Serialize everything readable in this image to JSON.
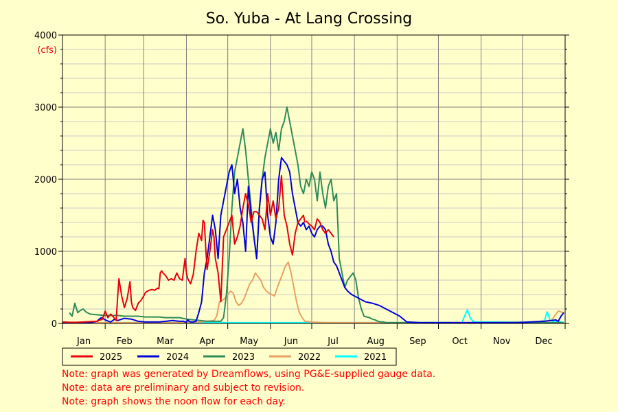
{
  "chart_data": {
    "type": "line",
    "title": "So. Yuba - At Lang Crossing",
    "ylabel": "(cfs)",
    "ylim": [
      0,
      4000
    ],
    "yticks": [
      0,
      1000,
      2000,
      3000,
      4000
    ],
    "xlim": [
      0,
      365
    ],
    "month_labels": [
      "Jan",
      "Feb",
      "Mar",
      "Apr",
      "May",
      "Jun",
      "Jul",
      "Aug",
      "Sep",
      "Oct",
      "Nov",
      "Dec"
    ],
    "grid": true,
    "legend_position": "bottom-left",
    "series": [
      {
        "name": "2025",
        "color": "#e8000b",
        "x": [
          0,
          5,
          10,
          15,
          20,
          25,
          29,
          31,
          33,
          35,
          37,
          39,
          40,
          41,
          43,
          45,
          47,
          49,
          50,
          51,
          53,
          55,
          57,
          59,
          60,
          61,
          63,
          65,
          67,
          69,
          70,
          71,
          72,
          73,
          74,
          75,
          77,
          79,
          81,
          83,
          85,
          87,
          89,
          90,
          91,
          93,
          95,
          97,
          99,
          101,
          102,
          103,
          104,
          105,
          107,
          109,
          110,
          111,
          113,
          115,
          117,
          119,
          121,
          123,
          125,
          127,
          129,
          131,
          133,
          135,
          137,
          139,
          141,
          143,
          145,
          147,
          149,
          151,
          153,
          155,
          157,
          159,
          161,
          163,
          165,
          167,
          169,
          171,
          173,
          175,
          176
        ],
        "y": [
          20,
          15,
          15,
          20,
          25,
          30,
          60,
          170,
          80,
          130,
          90,
          40,
          350,
          620,
          380,
          220,
          350,
          580,
          300,
          220,
          180,
          280,
          320,
          380,
          420,
          440,
          460,
          470,
          460,
          490,
          480,
          700,
          730,
          700,
          680,
          660,
          600,
          620,
          600,
          700,
          620,
          600,
          900,
          700,
          620,
          550,
          680,
          1000,
          1250,
          1150,
          1430,
          1400,
          1050,
          750,
          1000,
          1300,
          1200,
          900,
          700,
          300,
          1200,
          1300,
          1400,
          1500,
          1100,
          1200,
          1350,
          1600,
          1800,
          1650,
          1400,
          1550,
          1550,
          1500,
          1450,
          1300,
          1800,
          1500,
          1700,
          1450,
          1600,
          2050,
          1500,
          1350,
          1100,
          950,
          1250,
          1400,
          1450,
          1500,
          1400
        ],
        "x_tail": [
          177,
          179,
          181,
          183,
          185,
          187,
          189,
          191,
          193,
          195,
          197
        ],
        "y_tail": [
          1420,
          1380,
          1350,
          1300,
          1450,
          1400,
          1300,
          1250,
          1300,
          1250,
          1200
        ]
      },
      {
        "name": "2024",
        "color": "#0000dd",
        "x": [
          0,
          10,
          20,
          25,
          28,
          32,
          35,
          38,
          40,
          45,
          50,
          55,
          60,
          65,
          70,
          75,
          80,
          85,
          88,
          89,
          90,
          91,
          92,
          93,
          95,
          97,
          99,
          101,
          103,
          105,
          107,
          109,
          111,
          113,
          115,
          117,
          119,
          121,
          123,
          125,
          127,
          129,
          131,
          133,
          135,
          137,
          139,
          141,
          143,
          145,
          147,
          149,
          151,
          153,
          155,
          157,
          159,
          161,
          163,
          165,
          167,
          169,
          171,
          173,
          175,
          177,
          179,
          181,
          183,
          185,
          187,
          189,
          191,
          193,
          195,
          197,
          199,
          201,
          203,
          205,
          207,
          210,
          215,
          220,
          225,
          230,
          235,
          240,
          245,
          250,
          260,
          270,
          280,
          290,
          300,
          310,
          320,
          330,
          340,
          350,
          355,
          358,
          360,
          362,
          364
        ],
        "y": [
          10,
          10,
          10,
          30,
          80,
          40,
          20,
          60,
          40,
          70,
          60,
          30,
          20,
          20,
          20,
          30,
          40,
          30,
          30,
          20,
          20,
          50,
          30,
          20,
          20,
          30,
          150,
          300,
          700,
          900,
          1200,
          1500,
          1300,
          900,
          1500,
          1700,
          1900,
          2100,
          2200,
          1800,
          2000,
          1600,
          1400,
          1000,
          1900,
          1500,
          1200,
          900,
          1600,
          2000,
          2100,
          1500,
          1200,
          1100,
          1400,
          2000,
          2300,
          2250,
          2200,
          2100,
          1800,
          1600,
          1400,
          1350,
          1400,
          1300,
          1350,
          1250,
          1200,
          1300,
          1350,
          1350,
          1300,
          1100,
          1000,
          850,
          800,
          700,
          600,
          500,
          450,
          400,
          350,
          300,
          280,
          250,
          200,
          150,
          100,
          20,
          10,
          10,
          10,
          10,
          10,
          10,
          10,
          10,
          20,
          30,
          40,
          50,
          30,
          100,
          150
        ]
      },
      {
        "name": "2023",
        "color": "#2e8b57",
        "x": [
          5,
          7,
          9,
          11,
          13,
          15,
          17,
          20,
          25,
          30,
          35,
          40,
          45,
          50,
          55,
          60,
          65,
          70,
          75,
          80,
          85,
          90,
          95,
          100,
          105,
          110,
          115,
          117,
          119,
          121,
          123,
          125,
          127,
          129,
          131,
          133,
          135,
          137,
          139,
          141,
          143,
          145,
          147,
          149,
          151,
          153,
          155,
          157,
          159,
          161,
          163,
          165,
          167,
          169,
          171,
          173,
          175,
          177,
          179,
          181,
          183,
          185,
          187,
          189,
          191,
          193,
          195,
          197,
          199,
          201,
          203,
          205,
          207,
          209,
          211,
          213,
          215,
          217,
          219,
          221,
          223,
          225,
          227,
          229,
          231,
          233,
          235,
          237,
          239,
          241,
          243,
          245,
          247,
          249,
          251,
          253,
          255,
          257,
          259,
          261,
          263,
          265,
          270,
          280,
          290,
          300,
          310,
          320,
          330,
          340,
          350,
          360,
          364
        ],
        "y": [
          150,
          100,
          280,
          150,
          180,
          200,
          160,
          130,
          120,
          110,
          110,
          110,
          100,
          100,
          100,
          90,
          90,
          90,
          80,
          80,
          80,
          60,
          50,
          40,
          30,
          30,
          30,
          80,
          400,
          900,
          1600,
          2100,
          2300,
          2500,
          2700,
          2400,
          2000,
          1600,
          1200,
          900,
          1600,
          2000,
          2300,
          2500,
          2700,
          2500,
          2650,
          2400,
          2700,
          2800,
          3000,
          2800,
          2600,
          2400,
          2200,
          1900,
          1800,
          2000,
          1900,
          2100,
          2000,
          1700,
          2100,
          1800,
          1600,
          1900,
          2000,
          1700,
          1800,
          900,
          700,
          500,
          600,
          650,
          700,
          600,
          350,
          200,
          100,
          90,
          80,
          60,
          50,
          30,
          20,
          20,
          10,
          10,
          10,
          10,
          10,
          10,
          10,
          10,
          10,
          10,
          10,
          10,
          10,
          10,
          10,
          10,
          10,
          10,
          10,
          10,
          10,
          10,
          10,
          10,
          10,
          10,
          10
        ]
      },
      {
        "name": "2022",
        "color": "#e8a060",
        "x": [
          0,
          20,
          40,
          60,
          80,
          100,
          105,
          110,
          112,
          114,
          116,
          118,
          120,
          122,
          124,
          126,
          128,
          130,
          132,
          134,
          136,
          138,
          140,
          142,
          144,
          146,
          148,
          150,
          152,
          154,
          156,
          158,
          160,
          162,
          164,
          166,
          168,
          170,
          172,
          174,
          176,
          180,
          190,
          200,
          220,
          250,
          280,
          310,
          340,
          355,
          360,
          364
        ],
        "y": [
          10,
          10,
          10,
          10,
          10,
          20,
          30,
          40,
          100,
          300,
          320,
          350,
          400,
          450,
          420,
          300,
          250,
          280,
          350,
          450,
          550,
          600,
          700,
          650,
          600,
          500,
          450,
          420,
          400,
          380,
          500,
          600,
          700,
          800,
          850,
          700,
          500,
          300,
          150,
          80,
          30,
          20,
          10,
          10,
          10,
          10,
          10,
          10,
          20,
          40,
          170,
          150
        ]
      },
      {
        "name": "2021",
        "color": "#00ffff",
        "x": [
          0,
          20,
          40,
          60,
          80,
          100,
          120,
          140,
          160,
          180,
          200,
          220,
          240,
          260,
          280,
          290,
          292,
          294,
          296,
          298,
          300,
          310,
          320,
          330,
          340,
          345,
          350,
          352,
          354,
          356,
          358,
          360,
          362,
          364
        ],
        "y": [
          10,
          10,
          10,
          10,
          10,
          10,
          10,
          10,
          10,
          10,
          10,
          10,
          10,
          10,
          10,
          10,
          100,
          190,
          80,
          30,
          20,
          20,
          20,
          20,
          20,
          20,
          40,
          160,
          50,
          30,
          20,
          30,
          20,
          10
        ]
      }
    ]
  },
  "notes": [
    "Note: graph was generated by Dreamflows, using PG&E-supplied gauge data.",
    "Note: data are preliminary and subject to revision.",
    "Note: graph shows the noon flow for each day."
  ]
}
